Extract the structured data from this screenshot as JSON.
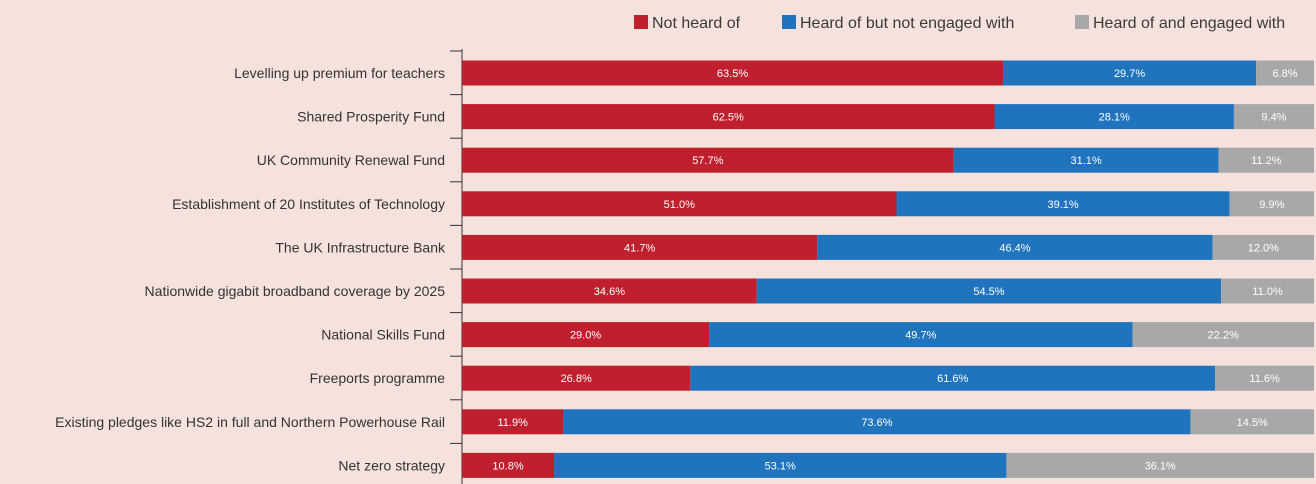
{
  "chart_data": {
    "type": "bar",
    "orientation": "horizontal",
    "stacked": true,
    "legend_position": "top-right",
    "grid": false,
    "xlim": [
      0,
      100
    ],
    "categories": [
      "Levelling up premium for teachers",
      "Shared Prosperity Fund",
      "UK Community Renewal Fund",
      "Establishment of 20 Institutes of Technology",
      "The UK Infrastructure Bank",
      "Nationwide gigabit broadband coverage by 2025",
      "National Skills Fund",
      "Freeports programme",
      "Existing pledges like HS2 in full and Northern Powerhouse Rail",
      "Net zero strategy"
    ],
    "series": [
      {
        "name": "Not heard of",
        "color": "#c0202e",
        "values": [
          63.5,
          62.5,
          57.7,
          51.0,
          41.7,
          34.6,
          29.0,
          26.8,
          11.9,
          10.8
        ],
        "labels": [
          "63.5%",
          "62.5%",
          "57.7%",
          "51.0%",
          "41.7%",
          "34.6%",
          "29.0%",
          "26.8%",
          "11.9%",
          "10.8%"
        ]
      },
      {
        "name": "Heard of but not engaged with",
        "color": "#1f74bd",
        "values": [
          29.7,
          28.1,
          31.1,
          39.1,
          46.4,
          54.5,
          49.7,
          61.6,
          73.6,
          53.1
        ],
        "labels": [
          "29.7%",
          "28.1%",
          "31.1%",
          "39.1%",
          "46.4%",
          "54.5%",
          "49.7%",
          "61.6%",
          "73.6%",
          "53.1%"
        ]
      },
      {
        "name": "Heard of and engaged with",
        "color": "#a8a8aa",
        "values": [
          6.8,
          9.4,
          11.2,
          9.9,
          12.0,
          11.0,
          22.2,
          11.6,
          14.5,
          36.1
        ],
        "labels": [
          "6.8%",
          "9.4%",
          "11.2%",
          "9.9%",
          "12.0%",
          "11.0%",
          "22.2%",
          "11.6%",
          "14.5%",
          "36.1%"
        ]
      }
    ]
  }
}
